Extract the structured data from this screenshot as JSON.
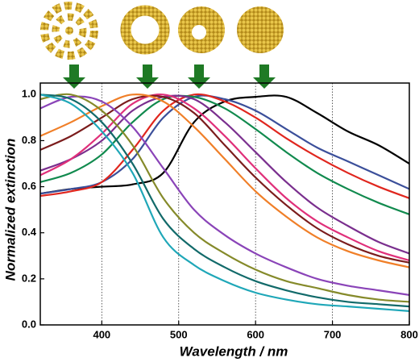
{
  "chart_data": {
    "type": "line",
    "x_label": "Wavelength / nm",
    "y_label": "Normalized extinction",
    "x": [
      320,
      360,
      400,
      440,
      480,
      520,
      560,
      600,
      640,
      680,
      720,
      760,
      800
    ],
    "series": [
      {
        "color": "#000000",
        "values": [
          0.57,
          0.59,
          0.6,
          0.61,
          0.66,
          0.88,
          0.97,
          0.99,
          0.99,
          0.92,
          0.84,
          0.78,
          0.7
        ]
      },
      {
        "color": "#3b4f9a",
        "values": [
          0.57,
          0.59,
          0.62,
          0.72,
          0.9,
          0.99,
          0.98,
          0.93,
          0.85,
          0.77,
          0.71,
          0.65,
          0.59
        ]
      },
      {
        "color": "#e0261e",
        "values": [
          0.56,
          0.58,
          0.62,
          0.76,
          0.93,
          1.0,
          0.97,
          0.9,
          0.81,
          0.73,
          0.66,
          0.6,
          0.55
        ]
      },
      {
        "color": "#118a4e",
        "values": [
          0.62,
          0.66,
          0.74,
          0.88,
          0.98,
          0.99,
          0.94,
          0.85,
          0.75,
          0.66,
          0.59,
          0.53,
          0.48
        ]
      },
      {
        "color": "#7a2f8e",
        "values": [
          0.67,
          0.72,
          0.8,
          0.93,
          0.99,
          0.98,
          0.88,
          0.75,
          0.62,
          0.51,
          0.43,
          0.36,
          0.31
        ]
      },
      {
        "color": "#e0307a",
        "values": [
          0.65,
          0.72,
          0.83,
          0.96,
          1.0,
          0.94,
          0.82,
          0.68,
          0.55,
          0.45,
          0.38,
          0.32,
          0.28
        ]
      },
      {
        "color": "#7b1c1c",
        "values": [
          0.76,
          0.82,
          0.9,
          0.98,
          0.99,
          0.92,
          0.78,
          0.64,
          0.52,
          0.42,
          0.35,
          0.3,
          0.27
        ]
      },
      {
        "color": "#f07f28",
        "values": [
          0.82,
          0.88,
          0.95,
          1.0,
          0.97,
          0.86,
          0.72,
          0.58,
          0.47,
          0.38,
          0.32,
          0.28,
          0.25
        ]
      },
      {
        "color": "#8a44b8",
        "values": [
          0.94,
          0.99,
          0.97,
          0.86,
          0.68,
          0.5,
          0.39,
          0.31,
          0.25,
          0.2,
          0.17,
          0.15,
          0.13
        ]
      },
      {
        "color": "#858a2a",
        "values": [
          0.98,
          1.0,
          0.93,
          0.78,
          0.55,
          0.4,
          0.31,
          0.24,
          0.19,
          0.16,
          0.13,
          0.11,
          0.1
        ]
      },
      {
        "color": "#126a6a",
        "values": [
          1.0,
          0.98,
          0.88,
          0.7,
          0.46,
          0.33,
          0.25,
          0.19,
          0.15,
          0.12,
          0.1,
          0.09,
          0.08
        ]
      },
      {
        "color": "#1fa7b8",
        "values": [
          1.0,
          0.96,
          0.84,
          0.66,
          0.38,
          0.26,
          0.19,
          0.14,
          0.11,
          0.09,
          0.08,
          0.07,
          0.06
        ]
      }
    ],
    "xlim": [
      320,
      800
    ],
    "xticks": [
      400,
      500,
      600,
      700,
      800
    ],
    "ylim": [
      0,
      1.05
    ],
    "yticks": [
      {
        "value": 0,
        "label": "0.0"
      },
      0.2,
      0.4,
      0.6,
      0.8,
      {
        "value": 1,
        "label": "1.0"
      }
    ],
    "grid": "x"
  }
}
